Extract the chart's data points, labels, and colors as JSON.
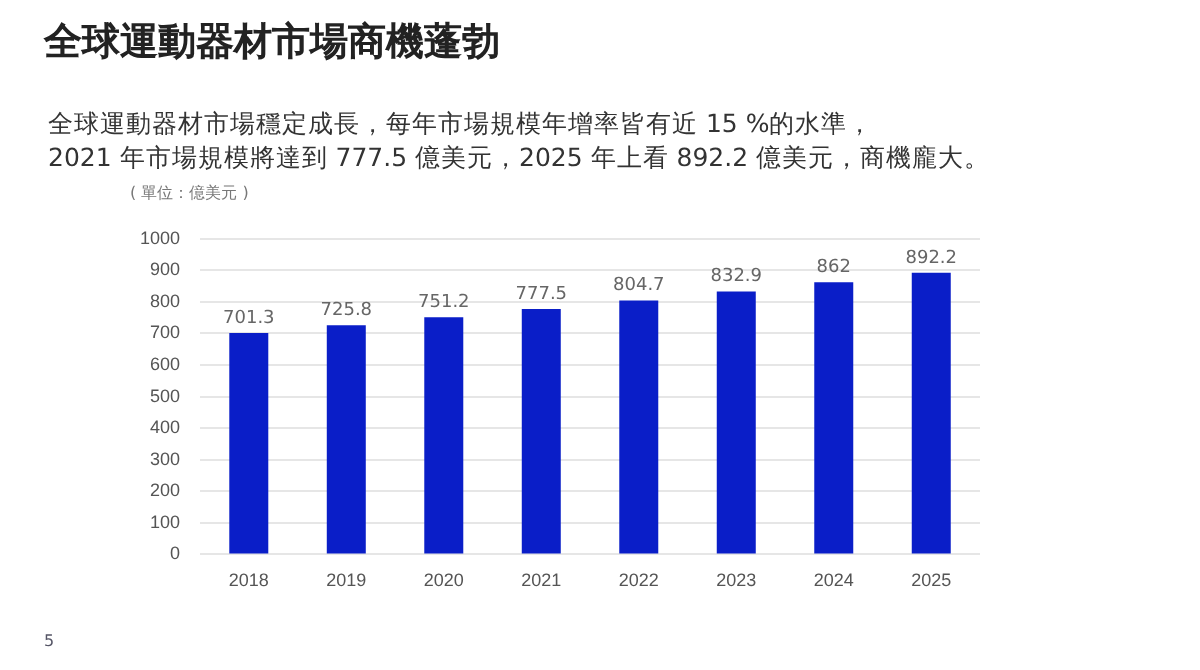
{
  "chart_data": {
    "type": "bar",
    "title": "全球運動器材市場商機蓬勃",
    "subtitle": "全球運動器材市場穩定成長，每年市場規模年增率皆有近 15 %的水準，\n2021 年市場規模將達到 777.5 億美元，2025 年上看 892.2 億美元，商機龐大。",
    "ylabel": "( 單位：億美元 )",
    "categories": [
      "2018",
      "2019",
      "2020",
      "2021",
      "2022",
      "2023",
      "2024",
      "2025"
    ],
    "values": [
      701.3,
      725.8,
      751.2,
      777.5,
      804.7,
      832.9,
      862,
      892.2
    ],
    "color": "#0a1ec8",
    "ylim": [
      0,
      1000
    ],
    "yticks": [
      0,
      100,
      200,
      300,
      400,
      500,
      600,
      700,
      800,
      900,
      1000
    ],
    "grid": "y",
    "data_labels": true,
    "legend": false,
    "annotations": [
      "5"
    ]
  }
}
